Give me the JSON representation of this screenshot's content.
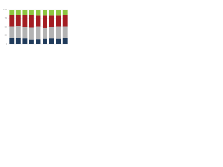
{
  "chart_data": {
    "type": "stacked_bar",
    "categories": [
      null,
      null,
      null,
      null,
      null,
      null,
      null,
      null,
      null
    ],
    "series": [
      {
        "color": "#1f3a5a",
        "values": [
          18,
          17,
          16,
          13,
          14,
          15,
          16,
          15,
          17
        ]
      },
      {
        "color": "#b3b3b3",
        "values": [
          32,
          34,
          33,
          35,
          36,
          32,
          33,
          35,
          33
        ]
      },
      {
        "color": "#a31d22",
        "values": [
          34,
          33,
          35,
          36,
          33,
          36,
          34,
          33,
          34
        ]
      },
      {
        "color": "#8dc63f",
        "values": [
          16,
          16,
          16,
          16,
          17,
          17,
          17,
          17,
          16
        ]
      }
    ],
    "ylim": [
      0,
      100
    ],
    "yticks": [
      0,
      25,
      50,
      75,
      100
    ],
    "grid": true
  }
}
